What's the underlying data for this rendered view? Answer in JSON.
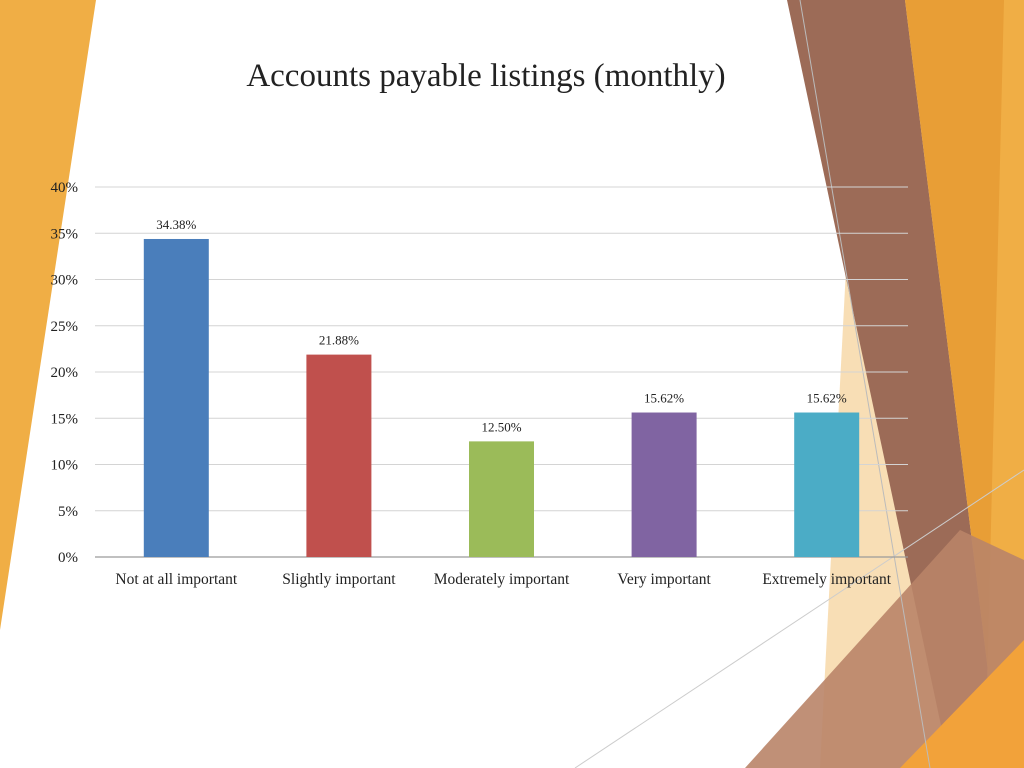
{
  "chart_data": {
    "type": "bar",
    "title": "Accounts payable listings (monthly)",
    "xlabel": "",
    "ylabel": "",
    "categories": [
      "Not at all important",
      "Slightly important",
      "Moderately important",
      "Very important",
      "Extremely important"
    ],
    "values": [
      34.38,
      21.88,
      12.5,
      15.62,
      15.62
    ],
    "data_labels": [
      "34.38%",
      "21.88%",
      "12.50%",
      "15.62%",
      "15.62%"
    ],
    "bar_colors": [
      "#4a7ebb",
      "#c0504d",
      "#9bbb59",
      "#8064a2",
      "#4bacc6"
    ],
    "ylim": [
      0,
      40
    ],
    "yticks": [
      0,
      5,
      10,
      15,
      20,
      25,
      30,
      35,
      40
    ],
    "ytick_labels": [
      "0%",
      "5%",
      "10%",
      "15%",
      "20%",
      "25%",
      "30%",
      "35%",
      "40%"
    ],
    "grid": true,
    "legend": "none"
  },
  "theme": {
    "accent_orange": "#f0ae45",
    "accent_brown": "#9c6b57",
    "accent_light": "#f7d8a8"
  }
}
